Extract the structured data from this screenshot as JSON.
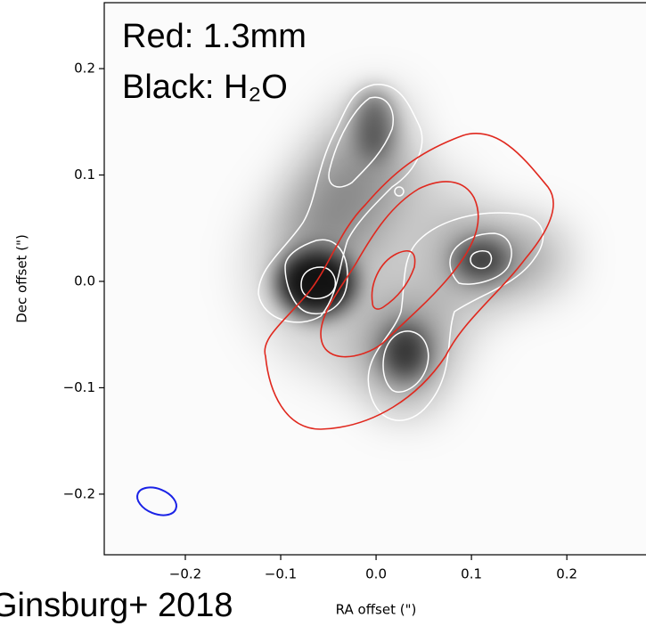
{
  "chart_data": {
    "type": "image",
    "annotations": [
      "Red: 1.3mm",
      "Black: H₂O",
      "Ginsburg+ 2018"
    ],
    "x_label": "RA offset (\")",
    "y_label": "Dec offset (\")",
    "xlim": [
      -0.285,
      0.283
    ],
    "ylim": [
      -0.257,
      0.262
    ],
    "xticks": [
      {
        "value": -0.2,
        "label": "−0.2"
      },
      {
        "value": -0.1,
        "label": "−0.1"
      },
      {
        "value": 0.0,
        "label": "0.0"
      },
      0.1,
      0.2
    ],
    "yticks": [
      {
        "value": -0.2,
        "label": "−0.2"
      },
      {
        "value": -0.1,
        "label": "−0.1"
      },
      {
        "value": 0.0,
        "label": "0.0"
      },
      0.1,
      0.2
    ]
  }
}
